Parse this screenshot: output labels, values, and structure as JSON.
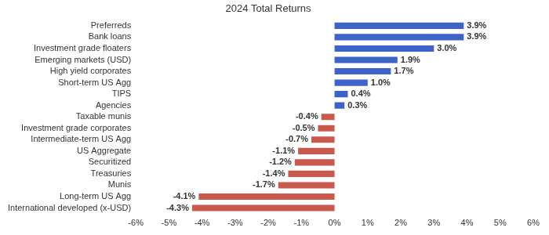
{
  "chart_data": {
    "type": "bar",
    "orientation": "horizontal",
    "title": "2024 Total Returns",
    "categories": [
      "Preferreds",
      "Bank loans",
      "Investment grade floaters",
      "Emerging markets (USD)",
      "High yield corporates",
      "Short-term US Agg",
      "TIPS",
      "Agencies",
      "Taxable munis",
      "Investment grade corporates",
      "Intermediate-term US Agg",
      "US Aggregate",
      "Securitized",
      "Treasuries",
      "Munis",
      "Long-term US Agg",
      "International developed (x-USD)"
    ],
    "values": [
      3.9,
      3.9,
      3.0,
      1.9,
      1.7,
      1.0,
      0.4,
      0.3,
      -0.4,
      -0.5,
      -0.7,
      -1.1,
      -1.2,
      -1.4,
      -1.7,
      -4.1,
      -4.3
    ],
    "value_labels": [
      "3.9%",
      "3.9%",
      "3.0%",
      "1.9%",
      "1.7%",
      "1.0%",
      "0.4%",
      "0.3%",
      "-0.4%",
      "-0.5%",
      "-0.7%",
      "-1.1%",
      "-1.2%",
      "-1.4%",
      "-1.7%",
      "-4.1%",
      "-4.3%"
    ],
    "colors": [
      "#3e63c8",
      "#3e63c8",
      "#3e63c8",
      "#3e63c8",
      "#3e63c8",
      "#3e63c8",
      "#3e63c8",
      "#3e63c8",
      "#c9594c",
      "#c9594c",
      "#c9594c",
      "#c9594c",
      "#c9594c",
      "#c9594c",
      "#c9594c",
      "#c9594c",
      "#c9594c"
    ],
    "xlim": [
      -6,
      6
    ],
    "xticks": [
      {
        "value": -6,
        "label": "-6%"
      },
      {
        "value": -5,
        "label": "-5%"
      },
      {
        "value": -4,
        "label": "-4%"
      },
      {
        "value": -3,
        "label": "-3%"
      },
      {
        "value": -2,
        "label": "-2%"
      },
      {
        "value": -1,
        "label": "-1%"
      },
      {
        "value": 0,
        "label": "0%"
      },
      {
        "value": 1,
        "label": "1%"
      },
      {
        "value": 2,
        "label": "2%"
      },
      {
        "value": 3,
        "label": "3%"
      },
      {
        "value": 4,
        "label": "4%"
      },
      {
        "value": 5,
        "label": "5%"
      },
      {
        "value": 6,
        "label": "6%"
      }
    ],
    "grid": false,
    "data_labels": true
  }
}
